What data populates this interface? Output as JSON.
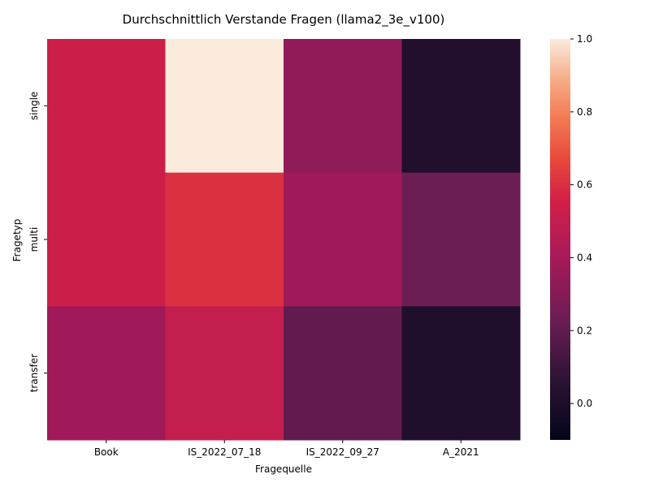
{
  "chart_data": {
    "type": "heatmap",
    "title": "Durchschnittlich Verstande Fragen (llama2_3e_v100)",
    "xlabel": "Fragequelle",
    "ylabel": "Fragetyp",
    "x_categories": [
      "Book",
      "IS_2022_07_18",
      "IS_2022_09_27",
      "A_2021"
    ],
    "y_categories": [
      "single",
      "multi",
      "transfer"
    ],
    "values": [
      [
        0.53,
        1.0,
        0.33,
        0.02
      ],
      [
        0.53,
        0.6,
        0.38,
        0.23
      ],
      [
        0.38,
        0.5,
        0.2,
        0.01
      ]
    ],
    "colorbar": {
      "vmin": -0.1,
      "vmax": 1.0,
      "ticks": [
        "0.0",
        "0.2",
        "0.4",
        "0.6",
        "0.8",
        "1.0"
      ],
      "colormap": "rocket"
    },
    "grid": false,
    "legend": "colorbar-right"
  }
}
